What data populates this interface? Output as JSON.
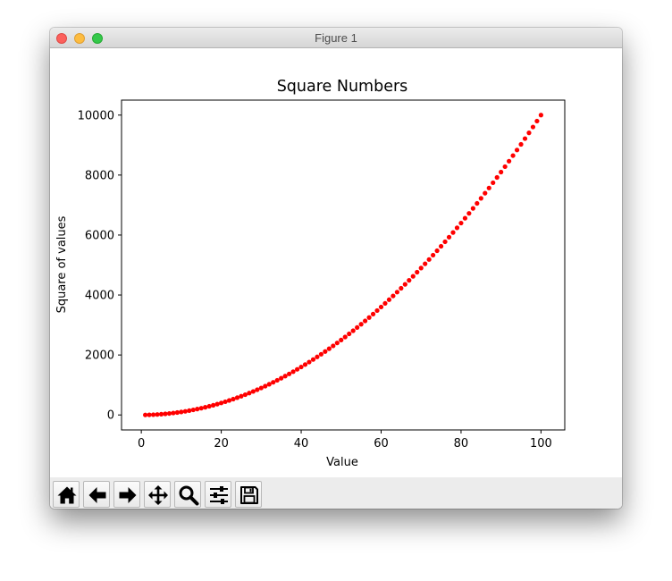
{
  "window": {
    "title": "Figure 1"
  },
  "toolbar": {
    "buttons": [
      {
        "name": "home-button",
        "icon": "home-icon"
      },
      {
        "name": "back-button",
        "icon": "arrow-left-icon"
      },
      {
        "name": "forward-button",
        "icon": "arrow-right-icon"
      },
      {
        "name": "pan-button",
        "icon": "move-arrows-icon"
      },
      {
        "name": "zoom-button",
        "icon": "magnifier-icon"
      },
      {
        "name": "configure-subplots-button",
        "icon": "sliders-icon"
      },
      {
        "name": "save-button",
        "icon": "floppy-disk-icon"
      }
    ]
  },
  "chart_data": {
    "type": "scatter",
    "title": "Square Numbers",
    "xlabel": "Value",
    "ylabel": "Square of values",
    "xlim": [
      -4.95,
      105.95
    ],
    "ylim": [
      -499.95,
      10499.95
    ],
    "xticks": [
      0,
      20,
      40,
      60,
      80,
      100
    ],
    "yticks": [
      0,
      2000,
      4000,
      6000,
      8000,
      10000
    ],
    "grid": false,
    "marker_color": "#ff0000",
    "series": [
      {
        "x_range": [
          1,
          100
        ],
        "x_step": 1,
        "function": "square",
        "note_values": "y = x squared for x = 1..100"
      }
    ]
  }
}
